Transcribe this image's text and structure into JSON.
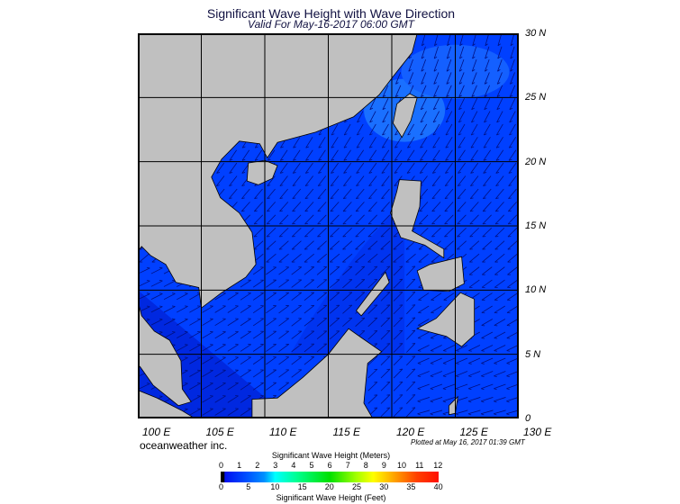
{
  "header": {
    "title": "Significant Wave Height with Wave Direction",
    "subtitle": "Valid For May-16-2017 06:00 GMT"
  },
  "map": {
    "region": "South China Sea",
    "lon_range": [
      100,
      130
    ],
    "lat_range": [
      0,
      30
    ],
    "lat_labels": [
      "30 N",
      "25 N",
      "20 N",
      "15 N",
      "10 N",
      "5 N",
      "0"
    ],
    "lon_labels": [
      "100 E",
      "105 E",
      "110 E",
      "115 E",
      "120 E",
      "125 E",
      "130 E"
    ],
    "colors": {
      "land": "#c0c0c0",
      "ocean": "#0040ff",
      "ocean_dark": "#0028e0",
      "ocean_light": "#1a70ff",
      "grid": "#000000"
    }
  },
  "footer": {
    "brand": "oceanweather inc.",
    "plotted": "Plotted at May 16, 2017 01:39 GMT"
  },
  "legend": {
    "meters_title": "Significant Wave Height (Meters)",
    "meters_ticks": [
      "0",
      "1",
      "2",
      "3",
      "4",
      "5",
      "6",
      "7",
      "8",
      "9",
      "10",
      "11",
      "12"
    ],
    "feet_ticks": [
      "0",
      "5",
      "10",
      "15",
      "20",
      "25",
      "30",
      "35",
      "40"
    ],
    "feet_title": "Significant Wave Height (Feet)"
  }
}
